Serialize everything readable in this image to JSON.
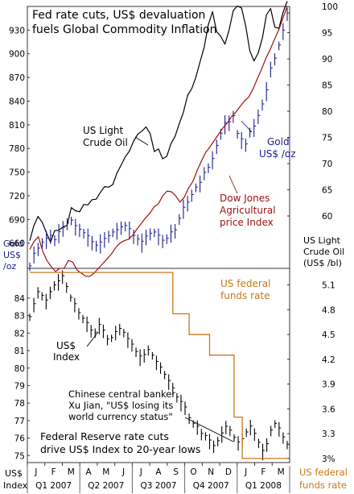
{
  "chart_data": [
    {
      "panel": "top",
      "type": "line",
      "title_lines": [
        "Fed rate cuts, US$ devaluation",
        "fuels Global Commodity Inflation"
      ],
      "left_axis": {
        "label_lines": [
          "Gold",
          "US$",
          "/oz"
        ],
        "ylim": [
          628,
          960
        ],
        "ticks": [
          660,
          690,
          720,
          750,
          780,
          810,
          840,
          870,
          900,
          930
        ]
      },
      "right_axis": {
        "label_lines": [
          "US Light",
          "Crude Oil",
          "(US$ /bl)"
        ],
        "ylim": [
          50,
          100
        ],
        "ticks": [
          60,
          65,
          70,
          75,
          80,
          85,
          90,
          95,
          100
        ]
      },
      "annotations": {
        "oil": [
          "US Light",
          "Crude Oil"
        ],
        "gold": [
          "Gold",
          "US$ /oz"
        ],
        "djag": [
          "Dow Jones",
          "Agricultural",
          "price Index"
        ]
      },
      "series": [
        {
          "name": "US Light Crude Oil",
          "axis": "right",
          "color": "#000000",
          "style": "line",
          "values": [
            55.3,
            58.2,
            59.9,
            58.8,
            56.8,
            55.0,
            57.2,
            57.3,
            57.9,
            58.2,
            61.6,
            61.0,
            60.8,
            62.2,
            62.1,
            63.1,
            63.2,
            64.5,
            65.6,
            65.5,
            66.0,
            68.2,
            69.7,
            71.3,
            72.4,
            74.3,
            75.6,
            76.2,
            77.0,
            75.7,
            72.3,
            72.8,
            70.9,
            71.4,
            73.8,
            75.2,
            77.6,
            79.8,
            83.0,
            84.3,
            86.5,
            89.4,
            92.2,
            96.5,
            99.0,
            95.2,
            94.3,
            92.8,
            95.5,
            99.2,
            100.1,
            99.7,
            96.3,
            91.5,
            89.6,
            91.1,
            93.9,
            98.4,
            99.6,
            96.1,
            95.8,
            98.9,
            101.0
          ]
        },
        {
          "name": "Gold US$ /oz",
          "axis": "left",
          "color": "#1a1a8c",
          "style": "hlc",
          "values": [
            630,
            645,
            652,
            660,
            664,
            668,
            663,
            672,
            678,
            684,
            688,
            680,
            676,
            672,
            667,
            660,
            656,
            659,
            664,
            668,
            673,
            675,
            679,
            681,
            676,
            668,
            664,
            660,
            667,
            671,
            673,
            668,
            662,
            665,
            672,
            675,
            690,
            703,
            710,
            720,
            730,
            735,
            748,
            755,
            765,
            782,
            798,
            810,
            812,
            820,
            798,
            790,
            784,
            800,
            806,
            820,
            835,
            852,
            880,
            893,
            910,
            928,
            950
          ]
        },
        {
          "name": "Dow Jones Agricultural price Index",
          "axis": "left",
          "color": "#a01010",
          "style": "line",
          "values": [
            652,
            662,
            668,
            650,
            638,
            630,
            624,
            628,
            628,
            638,
            636,
            626,
            622,
            618,
            618,
            622,
            628,
            634,
            640,
            646,
            654,
            660,
            663,
            665,
            670,
            678,
            685,
            692,
            698,
            706,
            710,
            720,
            726,
            725,
            720,
            712,
            718,
            730,
            738,
            752,
            764,
            775,
            782,
            790,
            798,
            806,
            812,
            820,
            826,
            833,
            840,
            845,
            855,
            868,
            880,
            894,
            905,
            918,
            930,
            945,
            960
          ]
        }
      ]
    },
    {
      "panel": "bottom",
      "type": "line",
      "left_axis": {
        "label_lines": [
          "US$",
          "Index"
        ],
        "ylim": [
          74.6,
          85.7
        ],
        "ticks": [
          75,
          76,
          77,
          78,
          79,
          80,
          81,
          82,
          83,
          84
        ]
      },
      "right_axis": {
        "label_lines": [
          "US federal",
          "funds rate"
        ],
        "ylim": [
          2.95,
          5.3
        ],
        "ticks": [
          "3%",
          "3.3",
          "3.6",
          "3.9",
          "4.2",
          "4.5",
          "4.8",
          "5.1"
        ]
      },
      "annotations": {
        "usd": [
          "US$",
          "Index"
        ],
        "ffr": [
          "US federal",
          "funds rate"
        ],
        "chinese": [
          "Chinese central banker",
          "Xu Jian, \"US$ losing its",
          "world currency status\""
        ],
        "fed": [
          "Federal Reserve rate cuts",
          "drive US$ Index to 20-year lows"
        ]
      },
      "series": [
        {
          "name": "US$ Index",
          "axis": "left",
          "color": "#000000",
          "style": "hlc",
          "values": [
            82.9,
            83.6,
            84.3,
            84.1,
            83.8,
            84.3,
            84.7,
            84.9,
            85.2,
            84.6,
            84.0,
            83.6,
            83.1,
            82.8,
            82.5,
            82.1,
            82.0,
            82.4,
            82.1,
            81.6,
            81.7,
            82.0,
            82.2,
            82.0,
            81.6,
            81.3,
            80.9,
            80.6,
            80.7,
            81.0,
            80.7,
            80.3,
            80.0,
            79.6,
            79.2,
            78.8,
            78.3,
            78.0,
            77.7,
            77.1,
            76.8,
            76.6,
            76.2,
            76.1,
            75.8,
            75.5,
            75.8,
            76.2,
            76.6,
            76.4,
            76.0,
            75.7,
            75.9,
            76.3,
            76.6,
            76.2,
            75.7,
            75.2,
            75.6,
            76.4,
            76.8,
            76.5,
            76.0,
            75.6
          ]
        },
        {
          "name": "US federal funds rate",
          "axis": "right",
          "color": "#c87818",
          "style": "step",
          "values": [
            5.25,
            5.25,
            5.25,
            5.25,
            5.25,
            5.25,
            5.25,
            5.25,
            5.25,
            5.25,
            5.25,
            5.25,
            5.25,
            5.25,
            5.25,
            5.25,
            5.25,
            5.25,
            5.25,
            5.25,
            5.25,
            5.25,
            5.25,
            5.25,
            5.25,
            5.25,
            5.25,
            5.25,
            5.25,
            5.25,
            5.25,
            5.25,
            5.25,
            5.25,
            5.25,
            4.75,
            4.75,
            4.75,
            4.75,
            4.5,
            4.5,
            4.5,
            4.5,
            4.5,
            4.25,
            4.25,
            4.25,
            4.25,
            4.25,
            4.25,
            3.5,
            3.5,
            3.0,
            3.0,
            3.0,
            3.0,
            3.0,
            3.0,
            3.0,
            3.0,
            3.0,
            3.0,
            3.0,
            3.0
          ]
        }
      ]
    }
  ],
  "x_axis": {
    "months": [
      "J",
      "F",
      "M",
      "A",
      "M",
      "J",
      "J",
      "A",
      "S",
      "O",
      "N",
      "D",
      "J",
      "F",
      "M"
    ],
    "quarters": [
      "Q1 2007",
      "Q2 2007",
      "Q3 2007",
      "Q4 2007",
      "Q1 2008"
    ],
    "left_caption": [
      "US$",
      "Index"
    ],
    "right_caption": [
      "US federal",
      "funds rate"
    ]
  },
  "colors": {
    "oil": "#000000",
    "gold": "#1a1a8c",
    "djag": "#a01010",
    "ffr": "#c87818",
    "annotation_red": "#a01010",
    "annotation_blue": "#1a1a8c",
    "annotation_orange": "#c87818"
  }
}
